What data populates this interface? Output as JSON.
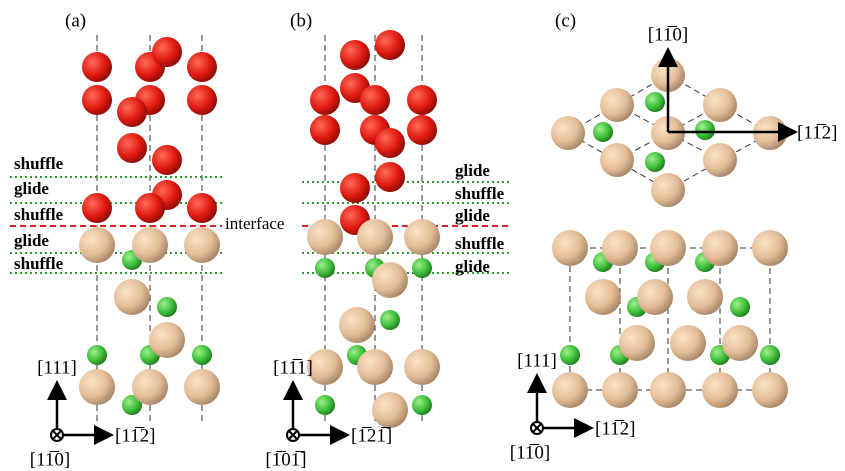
{
  "panels": [
    {
      "label": "(a)",
      "layers": [
        "shuffle",
        "glide",
        "shuffle",
        "glide",
        "shuffle"
      ],
      "axes": {
        "up": "[111]",
        "right": "[11̅2]",
        "out": "[11̅0]"
      }
    },
    {
      "label": "(b)",
      "layers": [
        "glide",
        "shuffle",
        "glide",
        "shuffle",
        "glide"
      ],
      "axes": {
        "up": "[11̅1]",
        "right": "[1̅21̅]",
        "out": "[1̅01̅]"
      }
    },
    {
      "label": "(c)",
      "top_axes": {
        "up": "[11̅0]",
        "right": "[11̅2]"
      },
      "axes": {
        "up": "[111]",
        "right": "[11̅2]",
        "out": "[11̅0]"
      }
    }
  ],
  "interface": "interface"
}
